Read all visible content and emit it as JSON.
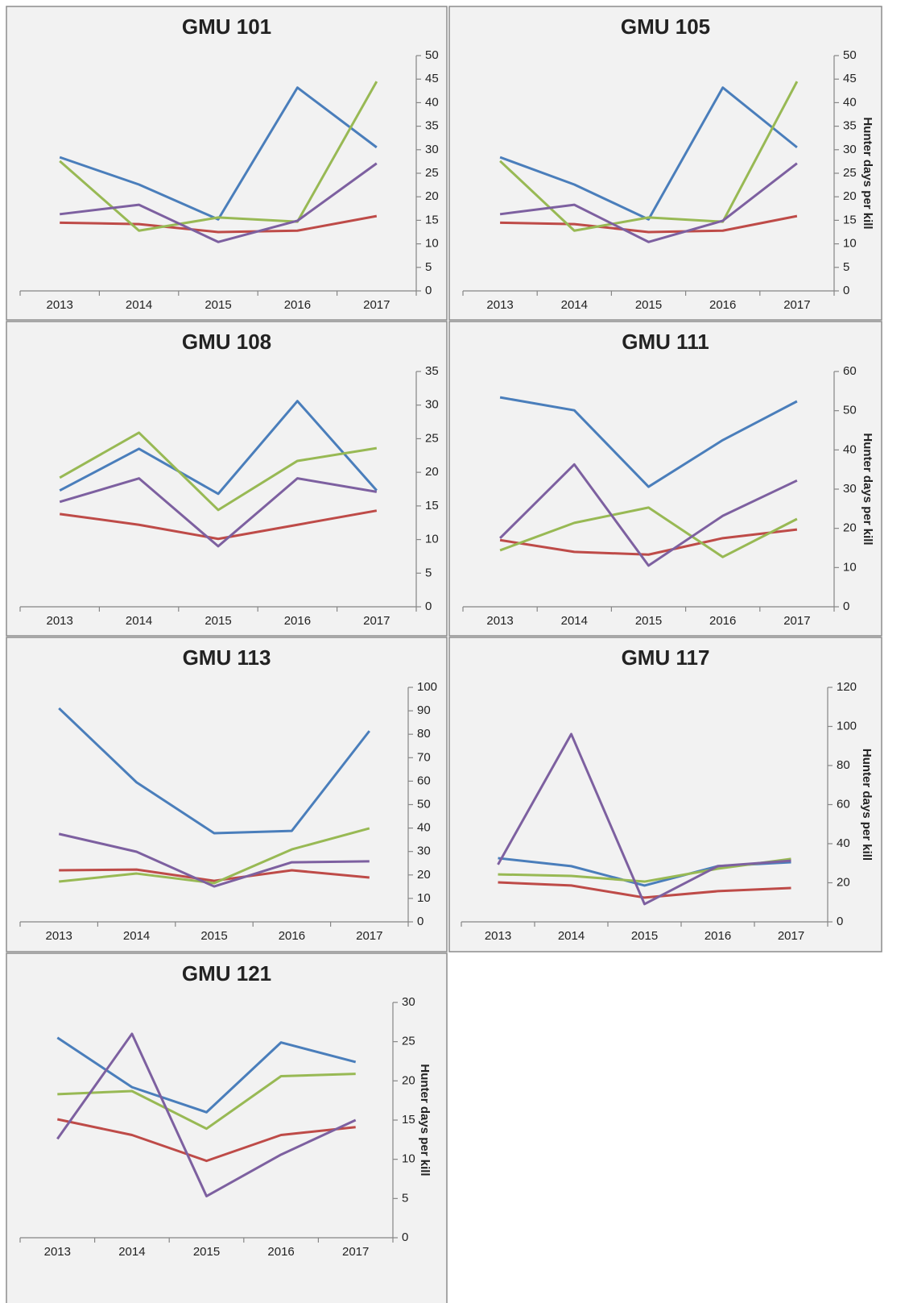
{
  "chart_data": [
    {
      "type": "line",
      "title": "GMU 101",
      "categories": [
        "2013",
        "2014",
        "2015",
        "2016",
        "2017"
      ],
      "series": [
        {
          "color": "#4a7ebb",
          "values": [
            28.4,
            22.6,
            15.2,
            43.2,
            30.5
          ]
        },
        {
          "color": "#be4b48",
          "values": [
            14.5,
            14.2,
            12.5,
            12.8,
            15.9
          ]
        },
        {
          "color": "#98b954",
          "values": [
            27.6,
            12.8,
            15.6,
            14.7,
            44.5
          ]
        },
        {
          "color": "#7d60a0",
          "values": [
            16.3,
            18.3,
            10.4,
            14.9,
            27.1
          ]
        }
      ],
      "ylim": [
        0,
        50
      ],
      "yticks": [
        0,
        5,
        10,
        15,
        20,
        25,
        30,
        35,
        40,
        45,
        50
      ]
    },
    {
      "type": "line",
      "title": "GMU 105",
      "categories": [
        "2013",
        "2014",
        "2015",
        "2016",
        "2017"
      ],
      "series": [
        {
          "color": "#4a7ebb",
          "values": [
            28.4,
            22.6,
            15.2,
            43.2,
            30.5
          ]
        },
        {
          "color": "#be4b48",
          "values": [
            14.5,
            14.2,
            12.5,
            12.8,
            15.9
          ]
        },
        {
          "color": "#98b954",
          "values": [
            27.6,
            12.8,
            15.6,
            14.7,
            44.5
          ]
        },
        {
          "color": "#7d60a0",
          "values": [
            16.3,
            18.3,
            10.4,
            14.9,
            27.1
          ]
        }
      ],
      "ylim": [
        0,
        50
      ],
      "yticks": [
        0,
        5,
        10,
        15,
        20,
        25,
        30,
        35,
        40,
        45,
        50
      ],
      "ylabel": "Hunter days per kill"
    },
    {
      "type": "line",
      "title": "GMU 108",
      "categories": [
        "2013",
        "2014",
        "2015",
        "2016",
        "2017"
      ],
      "series": [
        {
          "color": "#4a7ebb",
          "values": [
            17.3,
            23.5,
            16.8,
            30.6,
            17.3
          ]
        },
        {
          "color": "#be4b48",
          "values": [
            13.8,
            12.2,
            10.1,
            12.2,
            14.3
          ]
        },
        {
          "color": "#98b954",
          "values": [
            19.2,
            25.9,
            14.4,
            21.7,
            23.6
          ]
        },
        {
          "color": "#7d60a0",
          "values": [
            15.6,
            19.1,
            9.0,
            19.1,
            17.1
          ]
        }
      ],
      "ylim": [
        0,
        35
      ],
      "yticks": [
        0,
        5,
        10,
        15,
        20,
        25,
        30,
        35
      ]
    },
    {
      "type": "line",
      "title": "GMU 111",
      "categories": [
        "2013",
        "2014",
        "2015",
        "2016",
        "2017"
      ],
      "series": [
        {
          "color": "#4a7ebb",
          "values": [
            53.4,
            50.1,
            30.6,
            42.5,
            52.4
          ]
        },
        {
          "color": "#be4b48",
          "values": [
            17.0,
            14.0,
            13.3,
            17.5,
            19.7
          ]
        },
        {
          "color": "#98b954",
          "values": [
            14.4,
            21.4,
            25.3,
            12.7,
            22.4
          ]
        },
        {
          "color": "#7d60a0",
          "values": [
            17.5,
            36.3,
            10.5,
            23.2,
            32.2
          ]
        }
      ],
      "ylim": [
        0,
        60
      ],
      "yticks": [
        0,
        10,
        20,
        30,
        40,
        50,
        60
      ],
      "ylabel": "Hunter days per kill"
    },
    {
      "type": "line",
      "title": "GMU 113",
      "categories": [
        "2013",
        "2014",
        "2015",
        "2016",
        "2017"
      ],
      "series": [
        {
          "color": "#4a7ebb",
          "values": [
            91.1,
            59.5,
            37.8,
            38.8,
            81.4
          ]
        },
        {
          "color": "#be4b48",
          "values": [
            22.0,
            22.3,
            17.5,
            22.0,
            18.9
          ]
        },
        {
          "color": "#98b954",
          "values": [
            17.2,
            20.6,
            16.5,
            30.9,
            39.9
          ]
        },
        {
          "color": "#7d60a0",
          "values": [
            37.5,
            29.9,
            15.1,
            25.4,
            25.8
          ]
        }
      ],
      "ylim": [
        0,
        100
      ],
      "yticks": [
        0,
        10,
        20,
        30,
        40,
        50,
        60,
        70,
        80,
        90,
        100
      ]
    },
    {
      "type": "line",
      "title": "GMU 117",
      "categories": [
        "2013",
        "2014",
        "2015",
        "2016",
        "2017"
      ],
      "series": [
        {
          "color": "#4a7ebb",
          "values": [
            32.6,
            28.5,
            18.6,
            28.5,
            30.5
          ]
        },
        {
          "color": "#be4b48",
          "values": [
            20.2,
            18.6,
            12.4,
            15.7,
            17.3
          ]
        },
        {
          "color": "#98b954",
          "values": [
            24.3,
            23.5,
            20.6,
            27.2,
            32.2
          ]
        },
        {
          "color": "#7d60a0",
          "values": [
            29.3,
            96.1,
            9.1,
            28.5,
            31.3
          ]
        }
      ],
      "ylim": [
        0,
        120
      ],
      "yticks": [
        0,
        20,
        40,
        60,
        80,
        100,
        120
      ],
      "ylabel": "Hunter days per kill"
    },
    {
      "type": "line",
      "title": "GMU 121",
      "categories": [
        "2013",
        "2014",
        "2015",
        "2016",
        "2017"
      ],
      "series": [
        {
          "color": "#4a7ebb",
          "values": [
            25.5,
            19.2,
            16.0,
            24.9,
            22.4
          ]
        },
        {
          "color": "#be4b48",
          "values": [
            15.1,
            13.1,
            9.8,
            13.1,
            14.1
          ]
        },
        {
          "color": "#98b954",
          "values": [
            18.3,
            18.7,
            13.9,
            20.6,
            20.9
          ]
        },
        {
          "color": "#7d60a0",
          "values": [
            12.6,
            26.0,
            5.3,
            10.6,
            15.0
          ]
        }
      ],
      "ylim": [
        0,
        30
      ],
      "yticks": [
        0,
        5,
        10,
        15,
        20,
        25,
        30
      ],
      "ylabel": "Hunter days per kill"
    }
  ]
}
